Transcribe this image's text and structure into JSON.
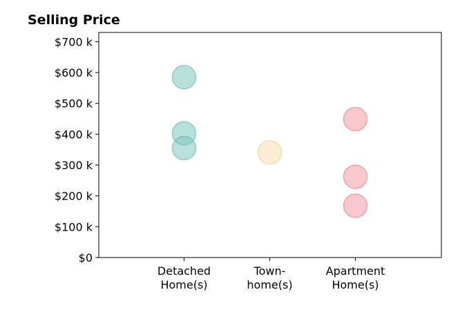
{
  "chart_data": {
    "type": "scatter",
    "title": "Selling Price",
    "xlabel": "",
    "ylabel": "",
    "ylim": [
      0,
      730
    ],
    "y_ticks": [
      {
        "value": 0,
        "label": "$0"
      },
      {
        "value": 100,
        "label": "$100 k"
      },
      {
        "value": 200,
        "label": "$200 k"
      },
      {
        "value": 300,
        "label": "$300 k"
      },
      {
        "value": 400,
        "label": "$400 k"
      },
      {
        "value": 500,
        "label": "$500 k"
      },
      {
        "value": 600,
        "label": "$600 k"
      },
      {
        "value": 700,
        "label": "$700 k"
      }
    ],
    "categories": [
      {
        "lines": [
          "Detached",
          "Home(s)"
        ]
      },
      {
        "lines": [
          "Town-",
          "home(s)"
        ]
      },
      {
        "lines": [
          "Apartment",
          "Home(s)"
        ]
      }
    ],
    "series": [
      {
        "category_index": 0,
        "color": "#7fc8bd",
        "stroke": "#5fb3a6",
        "values": [
          585,
          403,
          355
        ]
      },
      {
        "category_index": 1,
        "color": "#f5dfb0",
        "stroke": "#ecc98a",
        "values": [
          341
        ]
      },
      {
        "category_index": 2,
        "color": "#f29aa4",
        "stroke": "#e67a87",
        "values": [
          449,
          262,
          168
        ]
      }
    ],
    "grid": false,
    "legend": "none"
  }
}
